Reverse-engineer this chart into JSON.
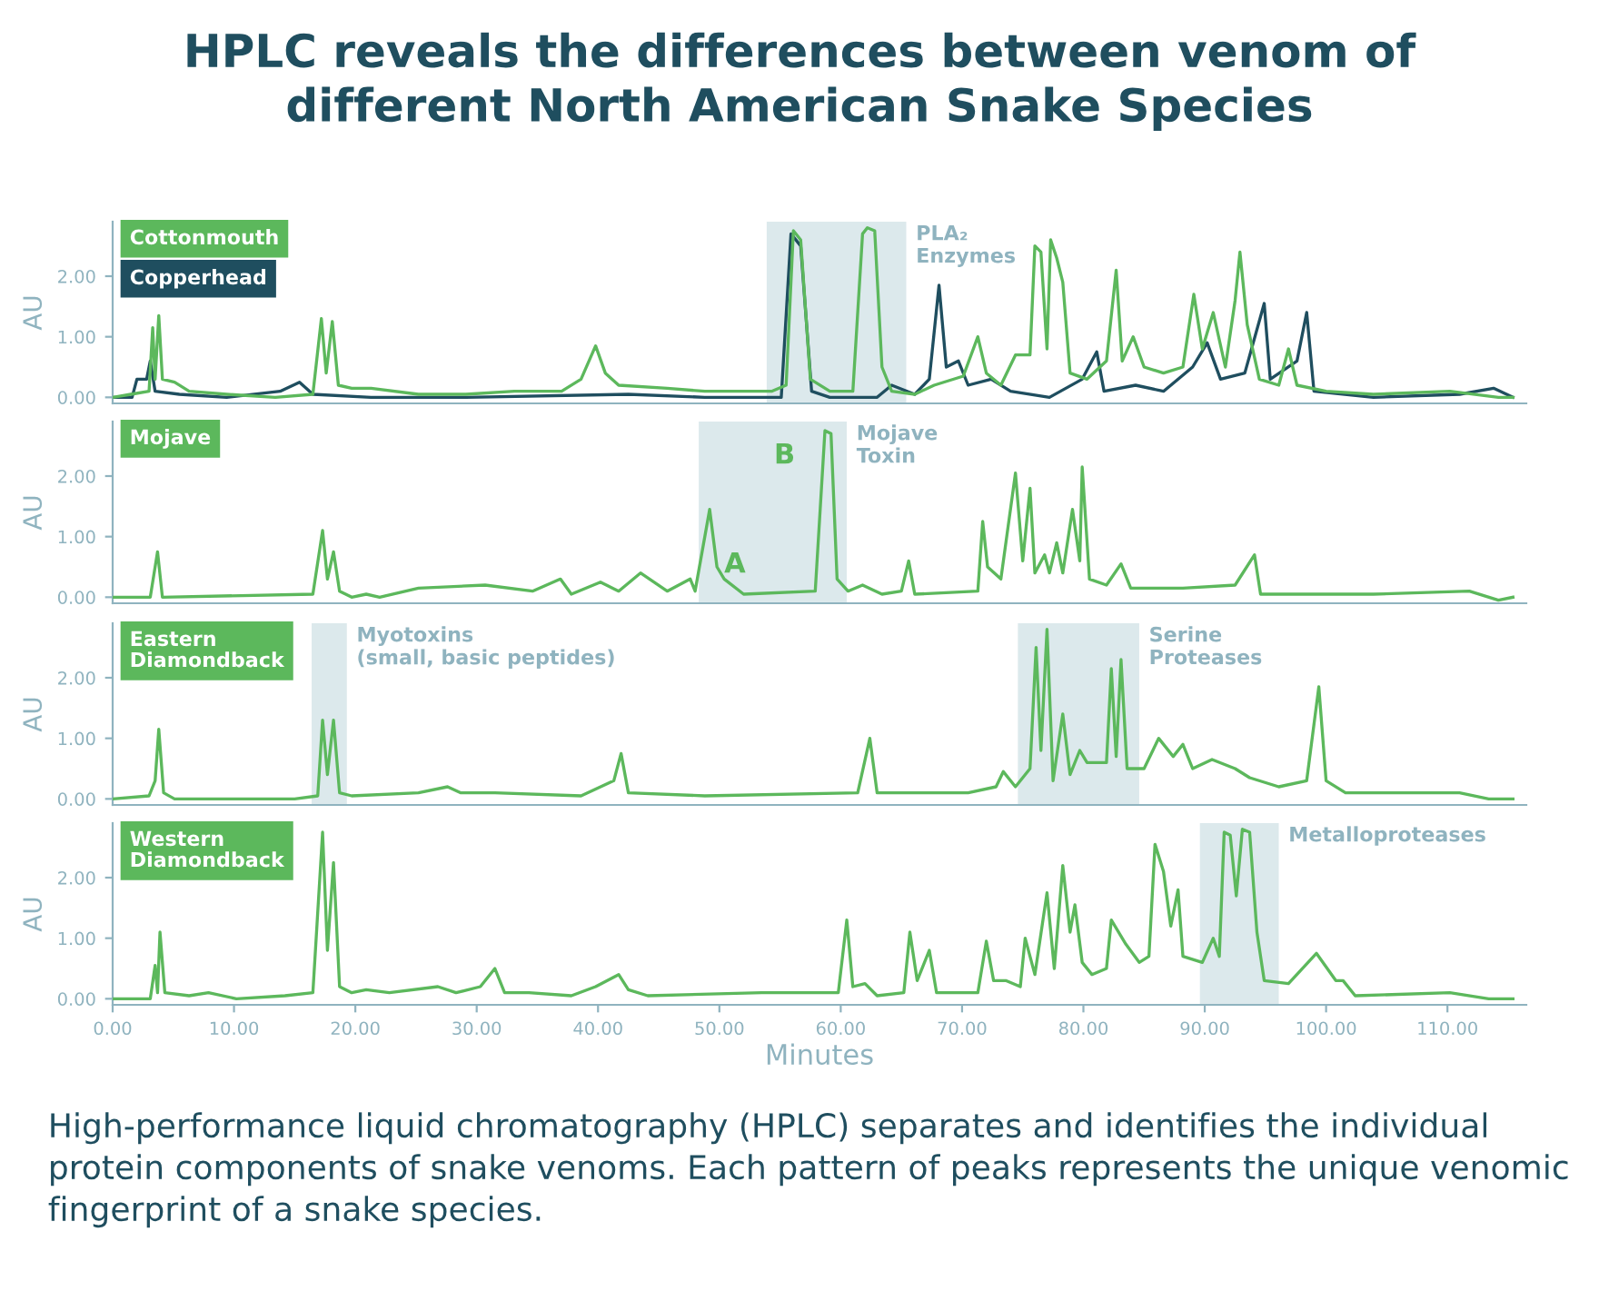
{
  "chart_data": [
    {
      "type": "line",
      "title": "HPLC reveals the differences between venom of\ndifferent North American Snake Species",
      "ylabel": "AU",
      "legend": "top left",
      "tick_labels": "y",
      "grid": false,
      "marker": "none",
      "line_style": "solid",
      "xlim": [
        0,
        116.5
      ],
      "ylim": [
        -0.1,
        2.9
      ],
      "yticks": [
        {
          "value": 0,
          "label": "0.00"
        },
        {
          "value": 1,
          "label": "1.00"
        },
        {
          "value": 2,
          "label": "2.00"
        }
      ],
      "bands": [
        {
          "axis": "x",
          "from": 53.9,
          "to": 65.4,
          "label": "PLA₂\nEnzymes",
          "color": "#dce9ec"
        }
      ],
      "series": [
        {
          "name": "Cottonmouth",
          "color": "#5cb85c",
          "x": [
            0,
            1.5,
            3.0,
            3.3,
            3.5,
            3.8,
            4.1,
            5.1,
            6.3,
            9.4,
            13.4,
            16.5,
            17.2,
            17.6,
            18.1,
            18.6,
            19.7,
            21.3,
            25.2,
            29.1,
            33.1,
            37,
            38.6,
            39.8,
            40.6,
            41.7,
            45.7,
            48.8,
            54.3,
            55.5,
            56.1,
            56.7,
            57.5,
            59.1,
            61,
            61.8,
            62.2,
            62.8,
            63.4,
            64.2,
            66.1,
            67.7,
            70.1,
            71.3,
            72.0,
            73.2,
            74.4,
            75.6,
            76,
            76.5,
            77.0,
            77.3,
            77.8,
            78.3,
            78.9,
            80.3,
            81.9,
            82.7,
            83.2,
            84.1,
            85,
            86.6,
            88.2,
            89.1,
            89.8,
            90.7,
            91.7,
            92.5,
            92.9,
            93.5,
            94.5,
            96.1,
            96.9,
            97.6,
            100,
            103.9,
            110.2,
            114.2,
            115.4
          ],
          "values": [
            0,
            0.05,
            0.1,
            1.15,
            0.3,
            1.35,
            0.3,
            0.25,
            0.1,
            0.05,
            0,
            0.05,
            1.3,
            0.4,
            1.25,
            0.2,
            0.15,
            0.15,
            0.05,
            0.05,
            0.1,
            0.1,
            0.3,
            0.85,
            0.4,
            0.2,
            0.15,
            0.1,
            0.1,
            0.2,
            2.75,
            2.6,
            0.3,
            0.1,
            0.1,
            2.7,
            2.8,
            2.75,
            0.5,
            0.1,
            0.05,
            0.2,
            0.35,
            1.0,
            0.4,
            0.2,
            0.7,
            0.7,
            2.5,
            2.4,
            0.8,
            2.6,
            2.3,
            1.9,
            0.4,
            0.3,
            0.6,
            2.1,
            0.6,
            1.0,
            0.5,
            0.4,
            0.5,
            1.7,
            0.8,
            1.4,
            0.5,
            1.6,
            2.4,
            1.2,
            0.3,
            0.2,
            0.8,
            0.2,
            0.1,
            0.05,
            0.1,
            0,
            0
          ]
        },
        {
          "name": "Copperhead",
          "color": "#1f4e5f",
          "x": [
            0,
            1.6,
            2.0,
            2.8,
            3.1,
            3.5,
            5.5,
            9.4,
            13.8,
            15.4,
            16.5,
            21.3,
            29.1,
            42.5,
            48.8,
            55.1,
            55.9,
            56.7,
            57.6,
            59.1,
            63,
            64.2,
            66.1,
            67.3,
            68.1,
            68.7,
            69.7,
            70.5,
            72.4,
            74,
            77.2,
            79.9,
            81.1,
            81.7,
            84.3,
            86.6,
            89,
            90.2,
            91.3,
            93.3,
            94.9,
            95.4,
            97.6,
            98.4,
            99,
            103.9,
            111,
            113.8,
            115.4
          ],
          "values": [
            0,
            0,
            0.3,
            0.3,
            0.6,
            0.1,
            0.05,
            0,
            0.1,
            0.25,
            0.05,
            0,
            0,
            0.05,
            0,
            0,
            2.7,
            2.5,
            0.1,
            0,
            0,
            0.2,
            0.05,
            0.3,
            1.85,
            0.5,
            0.6,
            0.2,
            0.3,
            0.1,
            0,
            0.3,
            0.75,
            0.1,
            0.2,
            0.1,
            0.5,
            0.9,
            0.3,
            0.4,
            1.55,
            0.3,
            0.6,
            1.4,
            0.1,
            0,
            0.05,
            0.15,
            0
          ]
        }
      ]
    },
    {
      "type": "line",
      "ylabel": "AU",
      "legend": "top left",
      "tick_labels": "y",
      "grid": false,
      "marker": "none",
      "line_style": "solid",
      "xlim": [
        0,
        116.5
      ],
      "ylim": [
        -0.1,
        2.9
      ],
      "yticks": [
        {
          "value": 0,
          "label": "0.00"
        },
        {
          "value": 1,
          "label": "1.00"
        },
        {
          "value": 2,
          "label": "2.00"
        }
      ],
      "bands": [
        {
          "axis": "x",
          "from": 48.3,
          "to": 60.5,
          "label": "Mojave\nToxin",
          "color": "#dce9ec"
        }
      ],
      "annotations": [
        {
          "text": "A",
          "x": 49.2,
          "y": 1.45
        },
        {
          "text": "B",
          "x": 58.7,
          "y": 2.75
        }
      ],
      "series": [
        {
          "name": "Mojave",
          "color": "#5cb85c",
          "x": [
            0,
            3.1,
            3.7,
            4.1,
            16.5,
            17.3,
            17.7,
            18.2,
            18.7,
            19.7,
            20.9,
            22,
            25.2,
            30.7,
            34.6,
            36.9,
            37.8,
            40.2,
            41.7,
            43.5,
            45.7,
            47.6,
            48,
            48.8,
            49.2,
            49.8,
            50.4,
            52,
            57.9,
            58.7,
            59.2,
            59.7,
            60.6,
            61.8,
            63.4,
            65,
            65.6,
            66.1,
            71.3,
            71.7,
            72.1,
            73.2,
            74.4,
            75,
            75.6,
            76,
            76.8,
            77.2,
            77.8,
            78.3,
            79.1,
            79.7,
            79.9,
            80.5,
            81.9,
            83.1,
            83.9,
            88.2,
            92.5,
            94.1,
            94.6,
            103.9,
            111.8,
            114.2,
            115.4
          ],
          "values": [
            0,
            0,
            0.75,
            0,
            0.05,
            1.1,
            0.3,
            0.75,
            0.1,
            0,
            0.05,
            0,
            0.15,
            0.2,
            0.1,
            0.3,
            0.05,
            0.25,
            0.1,
            0.4,
            0.1,
            0.3,
            0.1,
            1.0,
            1.45,
            0.5,
            0.3,
            0.05,
            0.1,
            2.75,
            2.7,
            0.3,
            0.1,
            0.2,
            0.05,
            0.1,
            0.6,
            0.05,
            0.1,
            1.25,
            0.5,
            0.3,
            2.05,
            0.6,
            1.8,
            0.4,
            0.7,
            0.4,
            0.9,
            0.4,
            1.45,
            0.6,
            2.15,
            0.3,
            0.2,
            0.55,
            0.15,
            0.15,
            0.2,
            0.7,
            0.05,
            0.05,
            0.1,
            -0.05,
            0
          ]
        }
      ]
    },
    {
      "type": "line",
      "ylabel": "AU",
      "legend": "top left",
      "tick_labels": "y",
      "grid": false,
      "marker": "none",
      "line_style": "solid",
      "xlim": [
        0,
        116.5
      ],
      "ylim": [
        -0.1,
        2.9
      ],
      "yticks": [
        {
          "value": 0,
          "label": "0.00"
        },
        {
          "value": 1,
          "label": "1.00"
        },
        {
          "value": 2,
          "label": "2.00"
        }
      ],
      "bands": [
        {
          "axis": "x",
          "from": 16.4,
          "to": 19.3,
          "label": "Myotoxins\n(small, basic peptides)",
          "color": "#dce9ec"
        },
        {
          "axis": "x",
          "from": 74.6,
          "to": 84.6,
          "label": "Serine\nProteases",
          "color": "#dce9ec"
        }
      ],
      "series": [
        {
          "name": "Eastern\nDiamondback",
          "color": "#5cb85c",
          "x": [
            0,
            3.0,
            3.5,
            3.8,
            4.2,
            5.1,
            15,
            16.9,
            17.3,
            17.7,
            18.2,
            18.7,
            19.7,
            25.2,
            27.6,
            28.7,
            31.5,
            38.6,
            41.3,
            41.9,
            42.5,
            48.8,
            61.4,
            62.4,
            63,
            70.5,
            72.8,
            73.4,
            74.4,
            75.6,
            76.1,
            76.5,
            77,
            77.5,
            78.3,
            78.9,
            79.7,
            80.3,
            81.9,
            82.3,
            82.7,
            83.1,
            83.6,
            85,
            86.2,
            87.4,
            88.2,
            89,
            90.6,
            92.5,
            93.7,
            96.1,
            98.4,
            99.4,
            100,
            101.6,
            111,
            113.4,
            115.4
          ],
          "values": [
            0,
            0.05,
            0.3,
            1.15,
            0.1,
            0,
            0,
            0.05,
            1.3,
            0.4,
            1.3,
            0.1,
            0.05,
            0.1,
            0.2,
            0.1,
            0.1,
            0.05,
            0.3,
            0.75,
            0.1,
            0.05,
            0.1,
            1.0,
            0.1,
            0.1,
            0.2,
            0.45,
            0.2,
            0.5,
            2.5,
            0.8,
            2.8,
            0.3,
            1.4,
            0.4,
            0.8,
            0.6,
            0.6,
            2.15,
            0.7,
            2.3,
            0.5,
            0.5,
            1.0,
            0.7,
            0.9,
            0.5,
            0.65,
            0.5,
            0.35,
            0.2,
            0.3,
            1.85,
            0.3,
            0.1,
            0.1,
            0,
            0
          ]
        }
      ]
    },
    {
      "type": "line",
      "xlabel": "Minutes",
      "ylabel": "AU",
      "legend": "top left",
      "grid": false,
      "marker": "none",
      "line_style": "solid",
      "xlim": [
        0,
        116.5
      ],
      "ylim": [
        -0.1,
        2.9
      ],
      "yticks": [
        {
          "value": 0,
          "label": "0.00"
        },
        {
          "value": 1,
          "label": "1.00"
        },
        {
          "value": 2,
          "label": "2.00"
        }
      ],
      "xticks": [
        {
          "value": 0,
          "label": "0.00"
        },
        {
          "value": 10,
          "label": "10.00"
        },
        {
          "value": 20,
          "label": "20.00"
        },
        {
          "value": 30,
          "label": "30.00"
        },
        {
          "value": 40,
          "label": "40.00"
        },
        {
          "value": 50,
          "label": "50.00"
        },
        {
          "value": 60,
          "label": "60.00"
        },
        {
          "value": 70,
          "label": "70.00"
        },
        {
          "value": 80,
          "label": "80.00"
        },
        {
          "value": 90,
          "label": "90.00"
        },
        {
          "value": 100,
          "label": "100.00"
        },
        {
          "value": 110,
          "label": "110.00"
        }
      ],
      "bands": [
        {
          "axis": "x",
          "from": 89.6,
          "to": 96.1,
          "label": "Metalloproteases",
          "color": "#dce9ec"
        }
      ],
      "annotations": [
        "High-performance liquid chromatography (HPLC) separates and identifies the individual protein components of snake venoms. Each pattern of peaks represents the unique venomic fingerprint of a snake species."
      ],
      "series": [
        {
          "name": "Western\nDiamondback",
          "color": "#5cb85c",
          "x": [
            0,
            3.1,
            3.5,
            3.7,
            3.9,
            4.3,
            6.3,
            7.9,
            10.2,
            14.2,
            16.5,
            17.3,
            17.7,
            18.2,
            18.7,
            19.7,
            20.9,
            22.8,
            26.8,
            28.3,
            30.3,
            31.5,
            32.3,
            34.3,
            37.8,
            39.8,
            41.7,
            42.5,
            44.1,
            53.5,
            59.8,
            60.5,
            61,
            62,
            63,
            65.2,
            65.7,
            66.3,
            67.3,
            67.9,
            71.3,
            72,
            72.6,
            73.6,
            74.8,
            75.2,
            76,
            77,
            77.6,
            78.3,
            78.9,
            79.3,
            79.9,
            80.7,
            81.9,
            82.3,
            83.5,
            84.6,
            85.4,
            85.9,
            86.6,
            87.2,
            87.8,
            88.2,
            89.8,
            90.7,
            91.2,
            91.6,
            92.1,
            92.6,
            93.1,
            93.7,
            94.3,
            94.9,
            96.9,
            99.2,
            100.8,
            101.4,
            102.4,
            110.2,
            113.4,
            115.4
          ],
          "values": [
            0,
            0,
            0.55,
            0.1,
            1.1,
            0.1,
            0.05,
            0.1,
            0,
            0.05,
            0.1,
            2.75,
            0.8,
            2.25,
            0.2,
            0.1,
            0.15,
            0.1,
            0.2,
            0.1,
            0.2,
            0.5,
            0.1,
            0.1,
            0.05,
            0.2,
            0.4,
            0.15,
            0.05,
            0.1,
            0.1,
            1.3,
            0.2,
            0.25,
            0.05,
            0.1,
            1.1,
            0.3,
            0.8,
            0.1,
            0.1,
            0.95,
            0.3,
            0.3,
            0.2,
            1.0,
            0.4,
            1.75,
            0.5,
            2.2,
            1.1,
            1.55,
            0.6,
            0.4,
            0.5,
            1.3,
            0.9,
            0.6,
            0.7,
            2.55,
            2.1,
            1.2,
            1.8,
            0.7,
            0.6,
            1.0,
            0.7,
            2.75,
            2.7,
            1.7,
            2.8,
            2.75,
            1.1,
            0.3,
            0.25,
            0.75,
            0.3,
            0.3,
            0.05,
            0.1,
            0,
            0
          ]
        }
      ]
    }
  ]
}
